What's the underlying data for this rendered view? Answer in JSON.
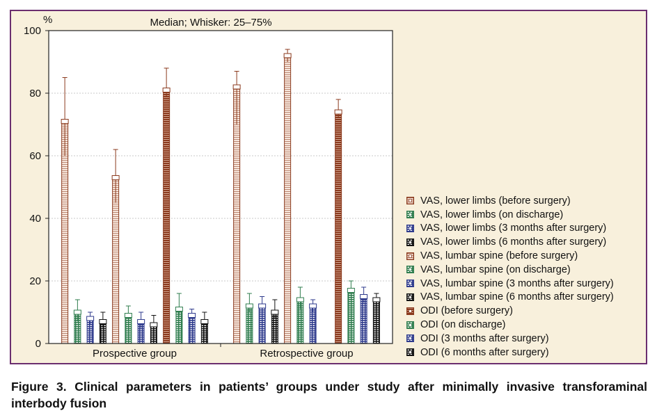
{
  "caption": "Figure 3. Clinical parameters in patients’ groups under study after minimally invasive transforaminal interbody fusion",
  "chart_data": {
    "type": "bar",
    "title": "Median; Whisker: 25–75%",
    "ylabel": "%",
    "ylim": [
      0,
      100
    ],
    "yticks": [
      0,
      20,
      40,
      60,
      80,
      100
    ],
    "grid": true,
    "legend_position": "right",
    "categories": [
      "Prospective group",
      "Retrospective group"
    ],
    "series": [
      {
        "name": "VAS, lower limbs (before surgery)",
        "color": "#8b3a1e",
        "fill": "light",
        "median": [
          71,
          82
        ],
        "q1": [
          60,
          70
        ],
        "q3": [
          85,
          87
        ]
      },
      {
        "name": "VAS, lower limbs (on discharge)",
        "color": "#2f7d4e",
        "fill": "dense",
        "median": [
          10,
          12
        ],
        "q1": [
          7,
          10
        ],
        "q3": [
          14,
          16
        ]
      },
      {
        "name": "VAS, lower limbs (3 months after surgery)",
        "color": "#2e3a8c",
        "fill": "dense",
        "median": [
          8,
          12
        ],
        "q1": [
          6,
          10
        ],
        "q3": [
          10,
          15
        ]
      },
      {
        "name": "VAS, lower limbs (6 months after surgery)",
        "color": "#111111",
        "fill": "dense",
        "median": [
          7,
          10
        ],
        "q1": [
          5,
          8
        ],
        "q3": [
          10,
          14
        ]
      },
      {
        "name": "VAS, lumbar spine (before surgery)",
        "color": "#8b3a1e",
        "fill": "light",
        "median": [
          53,
          92
        ],
        "q1": [
          45,
          90
        ],
        "q3": [
          62,
          94
        ]
      },
      {
        "name": "VAS, lumbar spine (on discharge)",
        "color": "#2f7d4e",
        "fill": "dense",
        "median": [
          9,
          14
        ],
        "q1": [
          7,
          11
        ],
        "q3": [
          12,
          18
        ]
      },
      {
        "name": "VAS, lumbar spine (3 months after surgery)",
        "color": "#2e3a8c",
        "fill": "dense",
        "median": [
          7,
          12
        ],
        "q1": [
          5,
          10
        ],
        "q3": [
          10,
          14
        ]
      },
      {
        "name": "VAS, lumbar spine (6 months after surgery)",
        "color": "#111111",
        "fill": "dense",
        "median": [
          6,
          0
        ],
        "q1": [
          4,
          0
        ],
        "q3": [
          9,
          0
        ]
      },
      {
        "name": "ODI (before surgery)",
        "color": "#8b3a1e",
        "fill": "dark",
        "median": [
          81,
          74
        ],
        "q1": [
          79,
          72
        ],
        "q3": [
          88,
          78
        ]
      },
      {
        "name": "ODI (on discharge)",
        "color": "#2f7d4e",
        "fill": "dense",
        "median": [
          11,
          17
        ],
        "q1": [
          9,
          15
        ],
        "q3": [
          16,
          20
        ]
      },
      {
        "name": "ODI (3 months after surgery)",
        "color": "#2e3a8c",
        "fill": "dense",
        "median": [
          9,
          15
        ],
        "q1": [
          8,
          13
        ],
        "q3": [
          11,
          18
        ]
      },
      {
        "name": "ODI (6 months after surgery)",
        "color": "#111111",
        "fill": "dense",
        "median": [
          7,
          14
        ],
        "q1": [
          6,
          12
        ],
        "q3": [
          10,
          16
        ]
      }
    ]
  }
}
